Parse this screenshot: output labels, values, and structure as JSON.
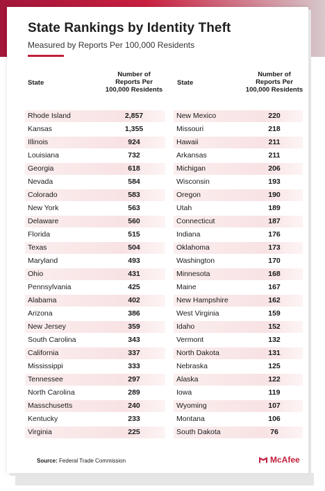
{
  "title": "State Rankings by Identity Theft",
  "subtitle": "Measured by Reports Per 100,000 Residents",
  "source_label": "Source:",
  "source_text": "Federal Trade Commission",
  "logo_text": "McAfee",
  "colors": {
    "brand": "#c01e3c",
    "stripe": "#f8e2e4"
  },
  "chart_data": {
    "type": "table",
    "title": "State Rankings by Identity Theft",
    "subtitle": "Measured by Reports Per 100,000 Residents",
    "columns": [
      "State",
      "Number of Reports Per 100,000 Residents"
    ],
    "left": [
      {
        "state": "Rhode Island",
        "value": "2,857"
      },
      {
        "state": "Kansas",
        "value": "1,355"
      },
      {
        "state": "Illinois",
        "value": "924"
      },
      {
        "state": "Louisiana",
        "value": "732"
      },
      {
        "state": "Georgia",
        "value": "618"
      },
      {
        "state": "Nevada",
        "value": "584"
      },
      {
        "state": "Colorado",
        "value": "583"
      },
      {
        "state": "New York",
        "value": "563"
      },
      {
        "state": "Delaware",
        "value": "560"
      },
      {
        "state": "Florida",
        "value": "515"
      },
      {
        "state": "Texas",
        "value": "504"
      },
      {
        "state": "Maryland",
        "value": "493"
      },
      {
        "state": "Ohio",
        "value": "431"
      },
      {
        "state": "Pennsylvania",
        "value": "425"
      },
      {
        "state": "Alabama",
        "value": "402"
      },
      {
        "state": "Arizona",
        "value": "386"
      },
      {
        "state": "New Jersey",
        "value": "359"
      },
      {
        "state": "South Carolina",
        "value": "343"
      },
      {
        "state": "California",
        "value": "337"
      },
      {
        "state": "Mississippi",
        "value": "333"
      },
      {
        "state": "Tennessee",
        "value": "297"
      },
      {
        "state": "North Carolina",
        "value": "289"
      },
      {
        "state": "Masschusetts",
        "value": "240"
      },
      {
        "state": "Kentucky",
        "value": "233"
      },
      {
        "state": "Virginia",
        "value": "225"
      }
    ],
    "right": [
      {
        "state": "New Mexico",
        "value": "220"
      },
      {
        "state": "Missouri",
        "value": "218"
      },
      {
        "state": "Hawaii",
        "value": "211"
      },
      {
        "state": "Arkansas",
        "value": "211"
      },
      {
        "state": "Michigan",
        "value": "206"
      },
      {
        "state": "Wisconsin",
        "value": "193"
      },
      {
        "state": "Oregon",
        "value": "190"
      },
      {
        "state": "Utah",
        "value": "189"
      },
      {
        "state": "Connecticut",
        "value": "187"
      },
      {
        "state": "Indiana",
        "value": "176"
      },
      {
        "state": "Oklahoma",
        "value": "173"
      },
      {
        "state": "Washington",
        "value": "170"
      },
      {
        "state": "Minnesota",
        "value": "168"
      },
      {
        "state": "Maine",
        "value": "167"
      },
      {
        "state": "New Hampshire",
        "value": "162"
      },
      {
        "state": "West Virginia",
        "value": "159"
      },
      {
        "state": "Idaho",
        "value": "152"
      },
      {
        "state": "Vermont",
        "value": "132"
      },
      {
        "state": "North Dakota",
        "value": "131"
      },
      {
        "state": "Nebraska",
        "value": "125"
      },
      {
        "state": "Alaska",
        "value": "122"
      },
      {
        "state": "Iowa",
        "value": "119"
      },
      {
        "state": "Wyoming",
        "value": "107"
      },
      {
        "state": "Montana",
        "value": "106"
      },
      {
        "state": "South Dakota",
        "value": "76"
      }
    ]
  },
  "headers": {
    "state": "State",
    "number_line1": "Number of",
    "number_line2": "Reports Per",
    "number_line3": "100,000 Residents"
  }
}
